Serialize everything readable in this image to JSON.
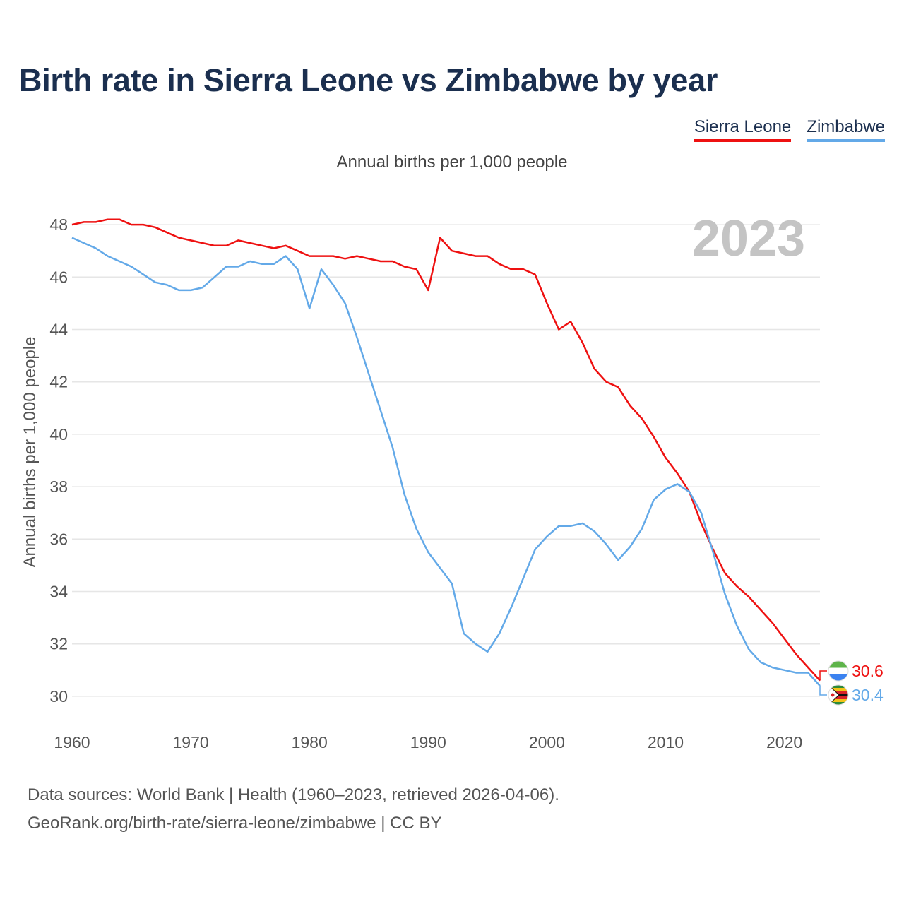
{
  "title": "Birth rate in Sierra Leone vs Zimbabwe by year",
  "subtitle": "Annual births per 1,000 people",
  "legend": [
    {
      "label": "Sierra Leone",
      "color": "#ee1111"
    },
    {
      "label": "Zimbabwe",
      "color": "#63a9e8"
    }
  ],
  "footer": {
    "line1": "Data sources: World Bank | Health (1960–2023, retrieved 2026-04-06).",
    "line2": "GeoRank.org/birth-rate/sierra-leone/zimbabwe | CC BY"
  },
  "chart_data": {
    "type": "line",
    "title": "Birth rate in Sierra Leone vs Zimbabwe by year",
    "ylabel": "Annual births per 1,000 people",
    "xlabel": "",
    "year_watermark": "2023",
    "xlim": [
      1960,
      2023
    ],
    "ylim": [
      29,
      49
    ],
    "x_ticks": [
      1960,
      1970,
      1980,
      1990,
      2000,
      2010,
      2020
    ],
    "y_ticks": [
      30,
      32,
      34,
      36,
      38,
      40,
      42,
      44,
      46,
      48
    ],
    "grid": true,
    "x": [
      1960,
      1961,
      1962,
      1963,
      1964,
      1965,
      1966,
      1967,
      1968,
      1969,
      1970,
      1971,
      1972,
      1973,
      1974,
      1975,
      1976,
      1977,
      1978,
      1979,
      1980,
      1981,
      1982,
      1983,
      1984,
      1985,
      1986,
      1987,
      1988,
      1989,
      1990,
      1991,
      1992,
      1993,
      1994,
      1995,
      1996,
      1997,
      1998,
      1999,
      2000,
      2001,
      2002,
      2003,
      2004,
      2005,
      2006,
      2007,
      2008,
      2009,
      2010,
      2011,
      2012,
      2013,
      2014,
      2015,
      2016,
      2017,
      2018,
      2019,
      2020,
      2021,
      2022,
      2023
    ],
    "series": [
      {
        "name": "Sierra Leone",
        "color": "#ee1111",
        "end_label": "30.6",
        "values": [
          48.0,
          48.1,
          48.1,
          48.2,
          48.2,
          48.0,
          48.0,
          47.9,
          47.7,
          47.5,
          47.4,
          47.3,
          47.2,
          47.2,
          47.4,
          47.3,
          47.2,
          47.1,
          47.2,
          47.0,
          46.8,
          46.8,
          46.8,
          46.7,
          46.8,
          46.7,
          46.6,
          46.6,
          46.4,
          46.3,
          45.5,
          47.5,
          47.0,
          46.9,
          46.8,
          46.8,
          46.5,
          46.3,
          46.3,
          46.1,
          45.0,
          44.0,
          44.3,
          43.5,
          42.5,
          42.0,
          41.8,
          41.1,
          40.6,
          39.9,
          39.1,
          38.5,
          37.8,
          36.6,
          35.6,
          34.7,
          34.2,
          33.8,
          33.3,
          32.8,
          32.2,
          31.6,
          31.1,
          30.6
        ]
      },
      {
        "name": "Zimbabwe",
        "color": "#63a9e8",
        "end_label": "30.4",
        "values": [
          47.5,
          47.3,
          47.1,
          46.8,
          46.6,
          46.4,
          46.1,
          45.8,
          45.7,
          45.5,
          45.5,
          45.6,
          46.0,
          46.4,
          46.4,
          46.6,
          46.5,
          46.5,
          46.8,
          46.3,
          44.8,
          46.3,
          45.7,
          45.0,
          43.7,
          42.3,
          40.9,
          39.5,
          37.7,
          36.4,
          35.5,
          34.9,
          34.3,
          32.4,
          32.0,
          31.7,
          32.4,
          33.4,
          34.5,
          35.6,
          36.1,
          36.5,
          36.5,
          36.6,
          36.3,
          35.8,
          35.2,
          35.7,
          36.4,
          37.5,
          37.9,
          38.1,
          37.8,
          37.0,
          35.5,
          33.9,
          32.7,
          31.8,
          31.3,
          31.1,
          31.0,
          30.9,
          30.9,
          30.4
        ]
      }
    ]
  }
}
